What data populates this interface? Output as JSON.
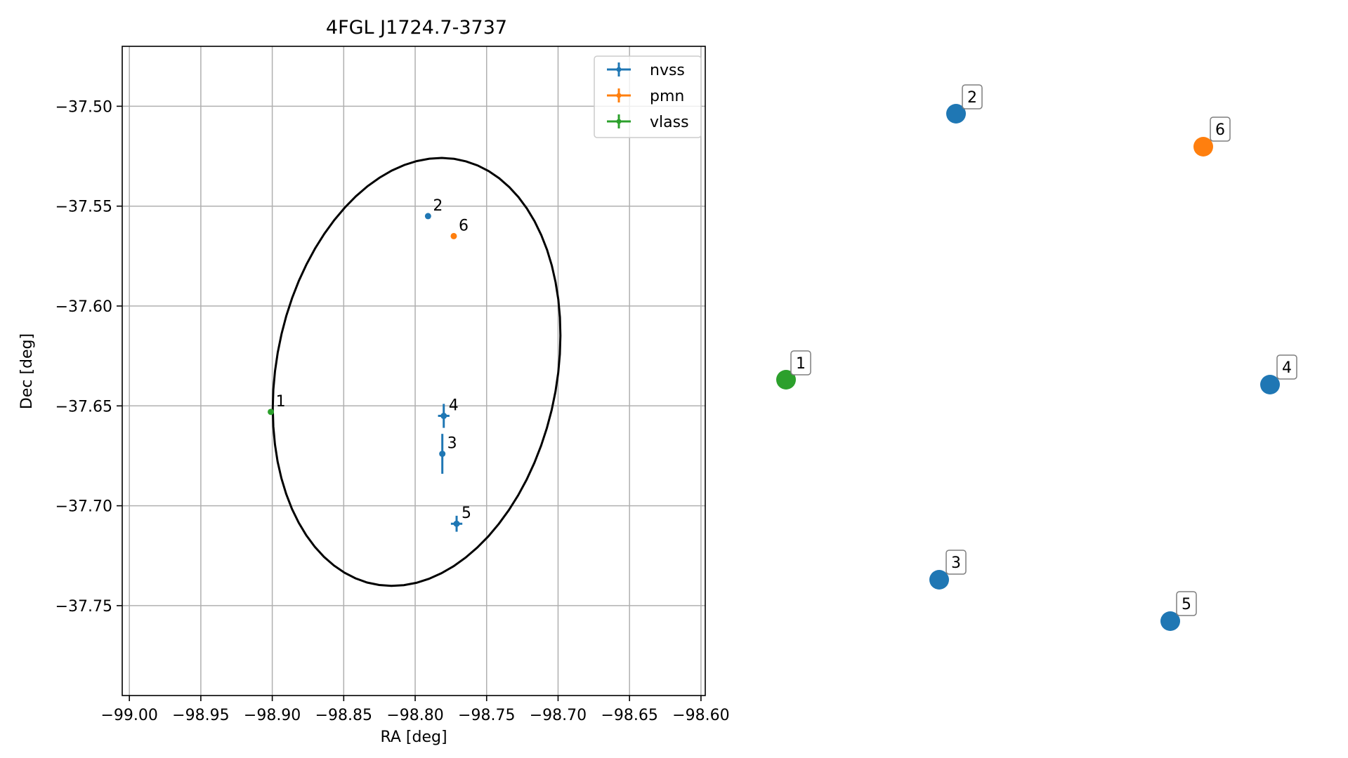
{
  "chart_data": [
    {
      "type": "scatter",
      "title": "4FGL J1724.7-3737",
      "xlabel": "RA [deg]",
      "ylabel": "Dec [deg]",
      "xlim": [
        -99.005,
        -98.597
      ],
      "ylim": [
        -37.795,
        -37.47
      ],
      "xticks": [
        -99.0,
        -98.95,
        -98.9,
        -98.85,
        -98.8,
        -98.75,
        -98.7,
        -98.65,
        -98.6
      ],
      "xtick_labels": [
        "−99.00",
        "−98.95",
        "−98.90",
        "−98.85",
        "−98.80",
        "−98.75",
        "−98.70",
        "−98.65",
        "−98.60"
      ],
      "yticks": [
        -37.5,
        -37.55,
        -37.6,
        -37.65,
        -37.7,
        -37.75
      ],
      "ytick_labels": [
        "−37.50",
        "−37.55",
        "−37.60",
        "−37.65",
        "−37.70",
        "−37.75"
      ],
      "grid": true,
      "legend_position": "top-right",
      "series": [
        {
          "name": "nvss",
          "color": "#1f77b4",
          "points": [
            {
              "label": "2",
              "x": -98.791,
              "y": -37.555,
              "xerr": 0.0,
              "yerr": 0.0
            },
            {
              "label": "4",
              "x": -98.78,
              "y": -37.655,
              "xerr": 0.004,
              "yerr": 0.006
            },
            {
              "label": "3",
              "x": -98.781,
              "y": -37.674,
              "xerr": 0.0,
              "yerr": 0.01
            },
            {
              "label": "5",
              "x": -98.771,
              "y": -37.709,
              "xerr": 0.004,
              "yerr": 0.004
            }
          ]
        },
        {
          "name": "pmn",
          "color": "#ff7f0e",
          "points": [
            {
              "label": "6",
              "x": -98.773,
              "y": -37.565,
              "xerr": 0.0,
              "yerr": 0.0
            }
          ]
        },
        {
          "name": "vlass",
          "color": "#2ca02c",
          "points": [
            {
              "label": "1",
              "x": -98.901,
              "y": -37.653,
              "xerr": 0.0,
              "yerr": 0.0
            }
          ]
        }
      ],
      "ellipse": {
        "center_x": -98.799,
        "center_y": -37.633,
        "semi_major": 0.113,
        "semi_minor": 0.094,
        "angle_deg": 55
      }
    },
    {
      "type": "scatter",
      "axes": "off",
      "points": [
        {
          "label": "1",
          "color": "#2ca02c"
        },
        {
          "label": "2",
          "color": "#1f77b4"
        },
        {
          "label": "3",
          "color": "#1f77b4"
        },
        {
          "label": "4",
          "color": "#1f77b4"
        },
        {
          "label": "5",
          "color": "#1f77b4"
        },
        {
          "label": "6",
          "color": "#ff7f0e"
        }
      ]
    }
  ]
}
